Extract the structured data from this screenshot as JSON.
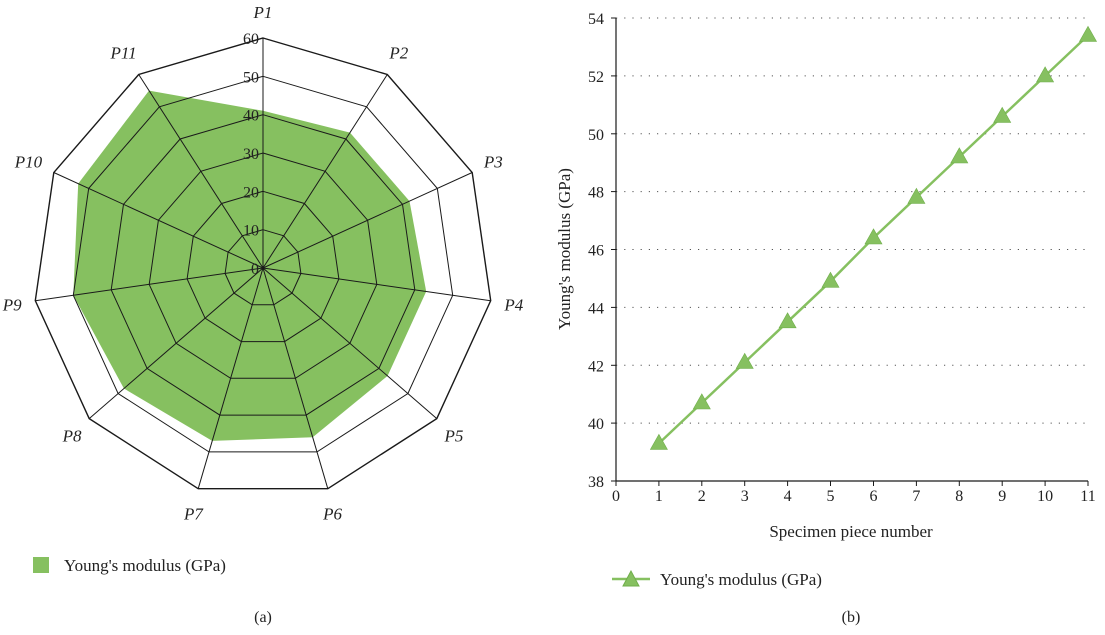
{
  "colors": {
    "series": "#86c060",
    "series_dark": "#6fae4a",
    "grid": "#555555",
    "frame": "#1a1a1a"
  },
  "chart_data": [
    {
      "type": "radar",
      "panel_label": "(a)",
      "categories": [
        "P1",
        "P2",
        "P3",
        "P4",
        "P5",
        "P6",
        "P7",
        "P8",
        "P9",
        "P10",
        "P11"
      ],
      "series": [
        {
          "name": "Young's modulus (GPa)",
          "values": [
            41,
            42,
            42,
            43,
            43,
            46,
            47,
            48,
            50,
            53,
            55
          ]
        }
      ],
      "radial_ticks": [
        "0",
        "10",
        "20",
        "30",
        "40",
        "50",
        "60"
      ],
      "rlim": [
        0,
        60
      ],
      "legend": "bottom-left"
    },
    {
      "type": "line",
      "panel_label": "(b)",
      "x": [
        1,
        2,
        3,
        4,
        5,
        6,
        7,
        8,
        9,
        10,
        11
      ],
      "series": [
        {
          "name": "Young's modulus (GPa)",
          "values": [
            39.3,
            40.7,
            42.1,
            43.5,
            44.9,
            46.4,
            47.8,
            49.2,
            50.6,
            52.0,
            53.4
          ]
        }
      ],
      "xlabel": "Specimen piece number",
      "ylabel": "Young's modulus (GPa)",
      "xlim": [
        0,
        11
      ],
      "ylim": [
        38,
        54
      ],
      "xticks": [
        "0",
        "1",
        "2",
        "3",
        "4",
        "5",
        "6",
        "7",
        "8",
        "9",
        "10",
        "11"
      ],
      "yticks": [
        "38",
        "40",
        "42",
        "44",
        "46",
        "48",
        "50",
        "52",
        "54"
      ],
      "grid": "horizontal-dotted",
      "marker": "triangle",
      "legend": "bottom-left"
    }
  ]
}
